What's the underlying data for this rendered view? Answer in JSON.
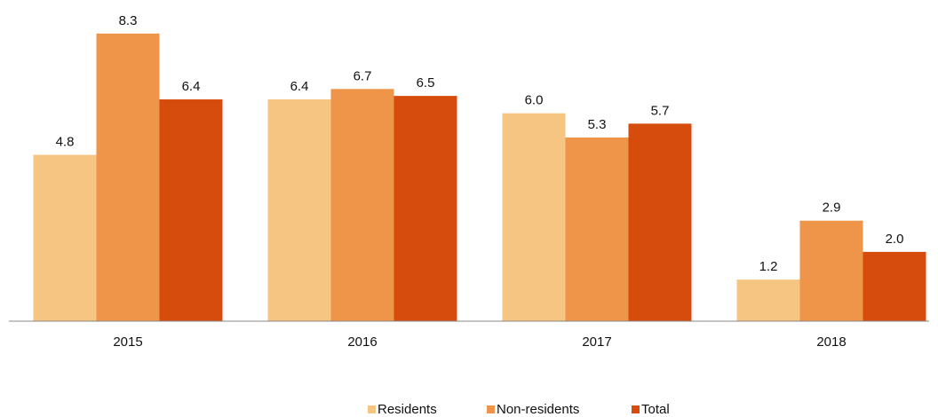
{
  "chart_data": {
    "type": "bar",
    "categories": [
      "2015",
      "2016",
      "2017",
      "2018"
    ],
    "series": [
      {
        "name": "Residents",
        "color": "#f5c581",
        "values": [
          4.8,
          6.4,
          6.0,
          1.2
        ],
        "value_labels": [
          "4.8",
          "6.4",
          "6.0",
          "1.2"
        ]
      },
      {
        "name": "Non-residents",
        "color": "#ee9549",
        "values": [
          8.3,
          6.7,
          5.3,
          2.9
        ],
        "value_labels": [
          "8.3",
          "6.7",
          "5.3",
          "2.9"
        ]
      },
      {
        "name": "Total",
        "color": "#d64c0d",
        "values": [
          6.4,
          6.5,
          5.7,
          2.0
        ],
        "value_labels": [
          "6.4",
          "6.5",
          "5.7",
          "2.0"
        ]
      }
    ],
    "ylim": [
      0,
      8.5
    ],
    "legend": "bottom"
  }
}
